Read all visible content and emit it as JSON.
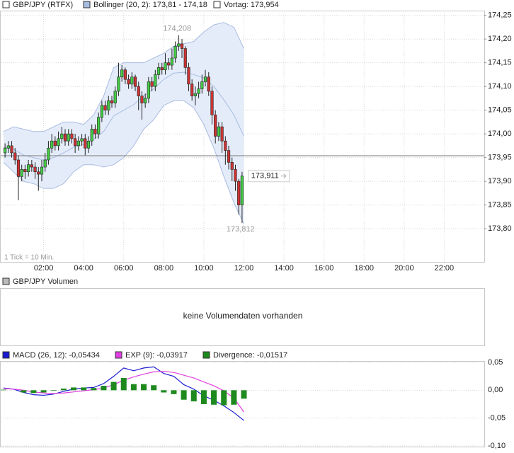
{
  "chart_data": [
    {
      "type": "candlestick",
      "legend": [
        {
          "name": "GBP/JPY (RTFX)",
          "color": "#ffffff"
        },
        {
          "name": "Bollinger (20, 2): 173,81 - 174,18",
          "color": "#a8bce0"
        },
        {
          "name": "Vortag: 173,954",
          "color": "#ffffff"
        }
      ],
      "note": "1 Tick = 10 Min.",
      "up_color": "#44cc44",
      "down_color": "#cc3333",
      "x": [
        "00:00",
        "00:10",
        "00:20",
        "00:30",
        "00:40",
        "00:50",
        "01:00",
        "01:10",
        "01:20",
        "01:30",
        "01:40",
        "01:50",
        "02:00",
        "02:10",
        "02:20",
        "02:30",
        "02:40",
        "02:50",
        "03:00",
        "03:10",
        "03:20",
        "03:30",
        "03:40",
        "03:50",
        "04:00",
        "04:10",
        "04:20",
        "04:30",
        "04:40",
        "04:50",
        "05:00",
        "05:10",
        "05:20",
        "05:30",
        "05:40",
        "05:50",
        "06:00",
        "06:10",
        "06:20",
        "06:30",
        "06:40",
        "06:50",
        "07:00",
        "07:10",
        "07:20",
        "07:30",
        "07:40",
        "07:50",
        "08:00",
        "08:10",
        "08:20",
        "08:30",
        "08:40",
        "08:50",
        "09:00",
        "09:10",
        "09:20",
        "09:30",
        "09:40",
        "09:50",
        "10:00",
        "10:10",
        "10:20",
        "10:30",
        "10:40",
        "10:50",
        "11:00",
        "11:10",
        "11:20",
        "11:30",
        "11:40",
        "11:50"
      ],
      "open": [
        173.96,
        173.97,
        173.975,
        173.96,
        173.945,
        173.91,
        173.925,
        173.92,
        173.935,
        173.93,
        173.92,
        173.915,
        173.93,
        173.945,
        173.97,
        173.985,
        173.975,
        173.99,
        174.0,
        173.985,
        174.0,
        173.99,
        173.975,
        173.985,
        173.99,
        173.97,
        173.985,
        174.01,
        174.0,
        174.035,
        174.06,
        174.05,
        174.07,
        174.065,
        174.09,
        174.12,
        174.135,
        174.115,
        174.105,
        174.12,
        174.1,
        174.08,
        174.065,
        174.075,
        174.11,
        174.1,
        174.125,
        174.14,
        174.135,
        174.15,
        174.145,
        174.16,
        174.185,
        174.19,
        174.18,
        174.14,
        174.105,
        174.08,
        174.085,
        174.095,
        174.11,
        174.12,
        174.09,
        174.04,
        173.995,
        174.015,
        173.985,
        173.965,
        173.94,
        173.925,
        173.9,
        173.85
      ],
      "high": [
        173.98,
        173.985,
        173.985,
        173.97,
        173.955,
        173.935,
        173.935,
        173.945,
        173.945,
        173.94,
        173.93,
        173.945,
        173.96,
        173.985,
        174.0,
        173.995,
        174.005,
        174.015,
        174.01,
        174.01,
        174.01,
        174.0,
        173.995,
        174.0,
        174.0,
        173.995,
        174.02,
        174.02,
        174.045,
        174.07,
        174.07,
        174.08,
        174.08,
        174.1,
        174.15,
        174.145,
        174.14,
        174.125,
        174.13,
        174.125,
        174.11,
        174.09,
        174.085,
        174.12,
        174.12,
        174.135,
        174.15,
        174.15,
        174.17,
        174.16,
        174.18,
        174.195,
        174.208,
        174.2,
        174.185,
        174.15,
        174.115,
        174.1,
        174.11,
        174.125,
        174.135,
        174.13,
        174.1,
        174.05,
        174.025,
        174.025,
        173.995,
        173.975,
        173.95,
        173.935,
        173.905,
        173.92
      ],
      "low": [
        173.95,
        173.96,
        173.95,
        173.935,
        173.86,
        173.9,
        173.905,
        173.91,
        173.92,
        173.905,
        173.88,
        173.9,
        173.92,
        173.935,
        173.96,
        173.965,
        173.965,
        173.98,
        173.975,
        173.975,
        173.98,
        173.96,
        173.965,
        173.975,
        173.955,
        173.96,
        173.975,
        173.99,
        173.99,
        174.025,
        174.04,
        174.04,
        174.055,
        174.055,
        174.08,
        174.11,
        174.105,
        174.095,
        174.095,
        174.09,
        174.05,
        174.03,
        174.055,
        174.065,
        174.09,
        174.09,
        174.115,
        174.125,
        174.125,
        174.135,
        174.135,
        174.15,
        174.175,
        174.16,
        174.125,
        174.09,
        174.07,
        174.06,
        174.075,
        174.085,
        174.1,
        174.08,
        174.02,
        173.98,
        173.985,
        173.96,
        173.935,
        173.925,
        173.9,
        173.88,
        173.83,
        173.812
      ],
      "close": [
        173.97,
        173.975,
        173.96,
        173.945,
        173.91,
        173.925,
        173.92,
        173.935,
        173.93,
        173.92,
        173.915,
        173.93,
        173.945,
        173.97,
        173.985,
        173.975,
        173.99,
        174.0,
        173.985,
        174.0,
        173.99,
        173.975,
        173.985,
        173.99,
        173.97,
        173.985,
        174.01,
        174.0,
        174.035,
        174.06,
        174.05,
        174.07,
        174.065,
        174.09,
        174.12,
        174.135,
        174.115,
        174.105,
        174.12,
        174.1,
        174.08,
        174.065,
        174.075,
        174.11,
        174.1,
        174.125,
        174.14,
        174.135,
        174.15,
        174.145,
        174.16,
        174.185,
        174.19,
        174.18,
        174.14,
        174.105,
        174.08,
        174.085,
        174.095,
        174.11,
        174.12,
        174.09,
        174.04,
        173.995,
        174.015,
        173.985,
        173.965,
        173.94,
        173.925,
        173.9,
        173.85,
        173.911
      ],
      "bollinger": {
        "color": "#a8bce0",
        "fill": "#e4ecfa",
        "x": [
          "00:00",
          "00:30",
          "01:00",
          "01:30",
          "02:00",
          "02:30",
          "03:00",
          "03:30",
          "04:00",
          "04:30",
          "05:00",
          "05:30",
          "06:00",
          "06:30",
          "07:00",
          "07:30",
          "08:00",
          "08:30",
          "09:00",
          "09:30",
          "10:00",
          "10:30",
          "11:00",
          "11:30",
          "12:00"
        ],
        "upper": [
          174.005,
          174.015,
          174.01,
          174.005,
          174.005,
          174.015,
          174.025,
          174.025,
          174.02,
          174.04,
          174.08,
          174.14,
          174.15,
          174.15,
          174.15,
          174.16,
          174.17,
          174.185,
          174.19,
          174.195,
          174.215,
          174.23,
          174.235,
          174.225,
          174.18
        ],
        "middle": [
          173.972,
          173.968,
          173.955,
          173.95,
          173.945,
          173.95,
          173.96,
          173.972,
          173.978,
          173.988,
          174.005,
          174.038,
          174.05,
          174.062,
          174.08,
          174.095,
          174.115,
          174.128,
          174.13,
          174.125,
          174.118,
          174.1,
          174.072,
          174.04,
          173.995
        ],
        "lower": [
          173.94,
          173.92,
          173.9,
          173.895,
          173.885,
          173.885,
          173.895,
          173.92,
          173.935,
          173.935,
          173.93,
          173.935,
          173.95,
          173.975,
          174.01,
          174.03,
          174.06,
          174.07,
          174.07,
          174.055,
          174.02,
          173.97,
          173.91,
          173.855,
          173.81
        ]
      },
      "previous_close": 173.954,
      "annotations": {
        "high": "174,208",
        "low": "173,812",
        "last": "173,911"
      },
      "xlim": [
        "00:00",
        "24:00"
      ],
      "xticks": [
        "02:00",
        "04:00",
        "06:00",
        "08:00",
        "10:00",
        "12:00",
        "14:00",
        "16:00",
        "18:00",
        "20:00",
        "22:00"
      ],
      "ylim": [
        173.73,
        174.26
      ],
      "yticks": [
        {
          "value": 173.8,
          "label": "173,80"
        },
        {
          "value": 173.85,
          "label": "173,85"
        },
        {
          "value": 173.9,
          "label": "173,90"
        },
        {
          "value": 173.95,
          "label": "173,95"
        },
        {
          "value": 174.0,
          "label": "174,00"
        },
        {
          "value": 174.05,
          "label": "174,05"
        },
        {
          "value": 174.1,
          "label": "174,10"
        },
        {
          "value": 174.15,
          "label": "174,15"
        },
        {
          "value": 174.2,
          "label": "174,20"
        },
        {
          "value": 174.25,
          "label": "174,25"
        }
      ],
      "grid": true
    },
    {
      "type": "volume",
      "title": "GBP/JPY Volumen",
      "message": "keine Volumendaten vorhanden",
      "color": "#bbbbbb"
    },
    {
      "type": "macd",
      "x": [
        "00:00",
        "00:30",
        "01:00",
        "01:30",
        "02:00",
        "02:30",
        "03:00",
        "03:30",
        "04:00",
        "04:30",
        "05:00",
        "05:30",
        "06:00",
        "06:30",
        "07:00",
        "07:30",
        "08:00",
        "08:30",
        "09:00",
        "09:30",
        "10:00",
        "10:30",
        "11:00",
        "11:30",
        "12:00"
      ],
      "series": [
        {
          "name": "MACD (26, 12): -0,05434",
          "color": "#1a1ad0",
          "values": [
            0.004,
            0.002,
            -0.004,
            -0.008,
            -0.009,
            -0.007,
            -0.002,
            0.002,
            0.004,
            0.005,
            0.012,
            0.025,
            0.04,
            0.035,
            0.04,
            0.042,
            0.03,
            0.025,
            0.01,
            0.002,
            -0.01,
            -0.018,
            -0.028,
            -0.04,
            -0.05434
          ]
        },
        {
          "name": "EXP (9): -0,03917",
          "color": "#e040e0",
          "values": [
            0.003,
            0.002,
            0.0,
            -0.003,
            -0.005,
            -0.006,
            -0.005,
            -0.003,
            -0.001,
            0.001,
            0.004,
            0.01,
            0.018,
            0.024,
            0.029,
            0.033,
            0.034,
            0.032,
            0.027,
            0.022,
            0.015,
            0.008,
            -0.001,
            -0.014,
            -0.03917
          ]
        },
        {
          "name": "Divergence: -0,01517",
          "color": "#1e8a1e",
          "kind": "bar",
          "values": [
            0.001,
            0.0,
            -0.004,
            -0.005,
            -0.004,
            -0.001,
            0.003,
            0.005,
            0.005,
            0.004,
            0.008,
            0.015,
            0.022,
            0.011,
            0.011,
            0.009,
            -0.004,
            -0.007,
            -0.017,
            -0.02,
            -0.025,
            -0.026,
            -0.027,
            -0.026,
            -0.01517
          ]
        }
      ],
      "xlim": [
        "00:00",
        "24:00"
      ],
      "ylim": [
        -0.1,
        0.05
      ],
      "yticks": [
        {
          "value": -0.1,
          "label": "-0,10"
        },
        {
          "value": -0.05,
          "label": "-0,05"
        },
        {
          "value": 0,
          "label": "0,00"
        },
        {
          "value": 0.05,
          "label": "0,05"
        }
      ],
      "grid": true
    }
  ]
}
